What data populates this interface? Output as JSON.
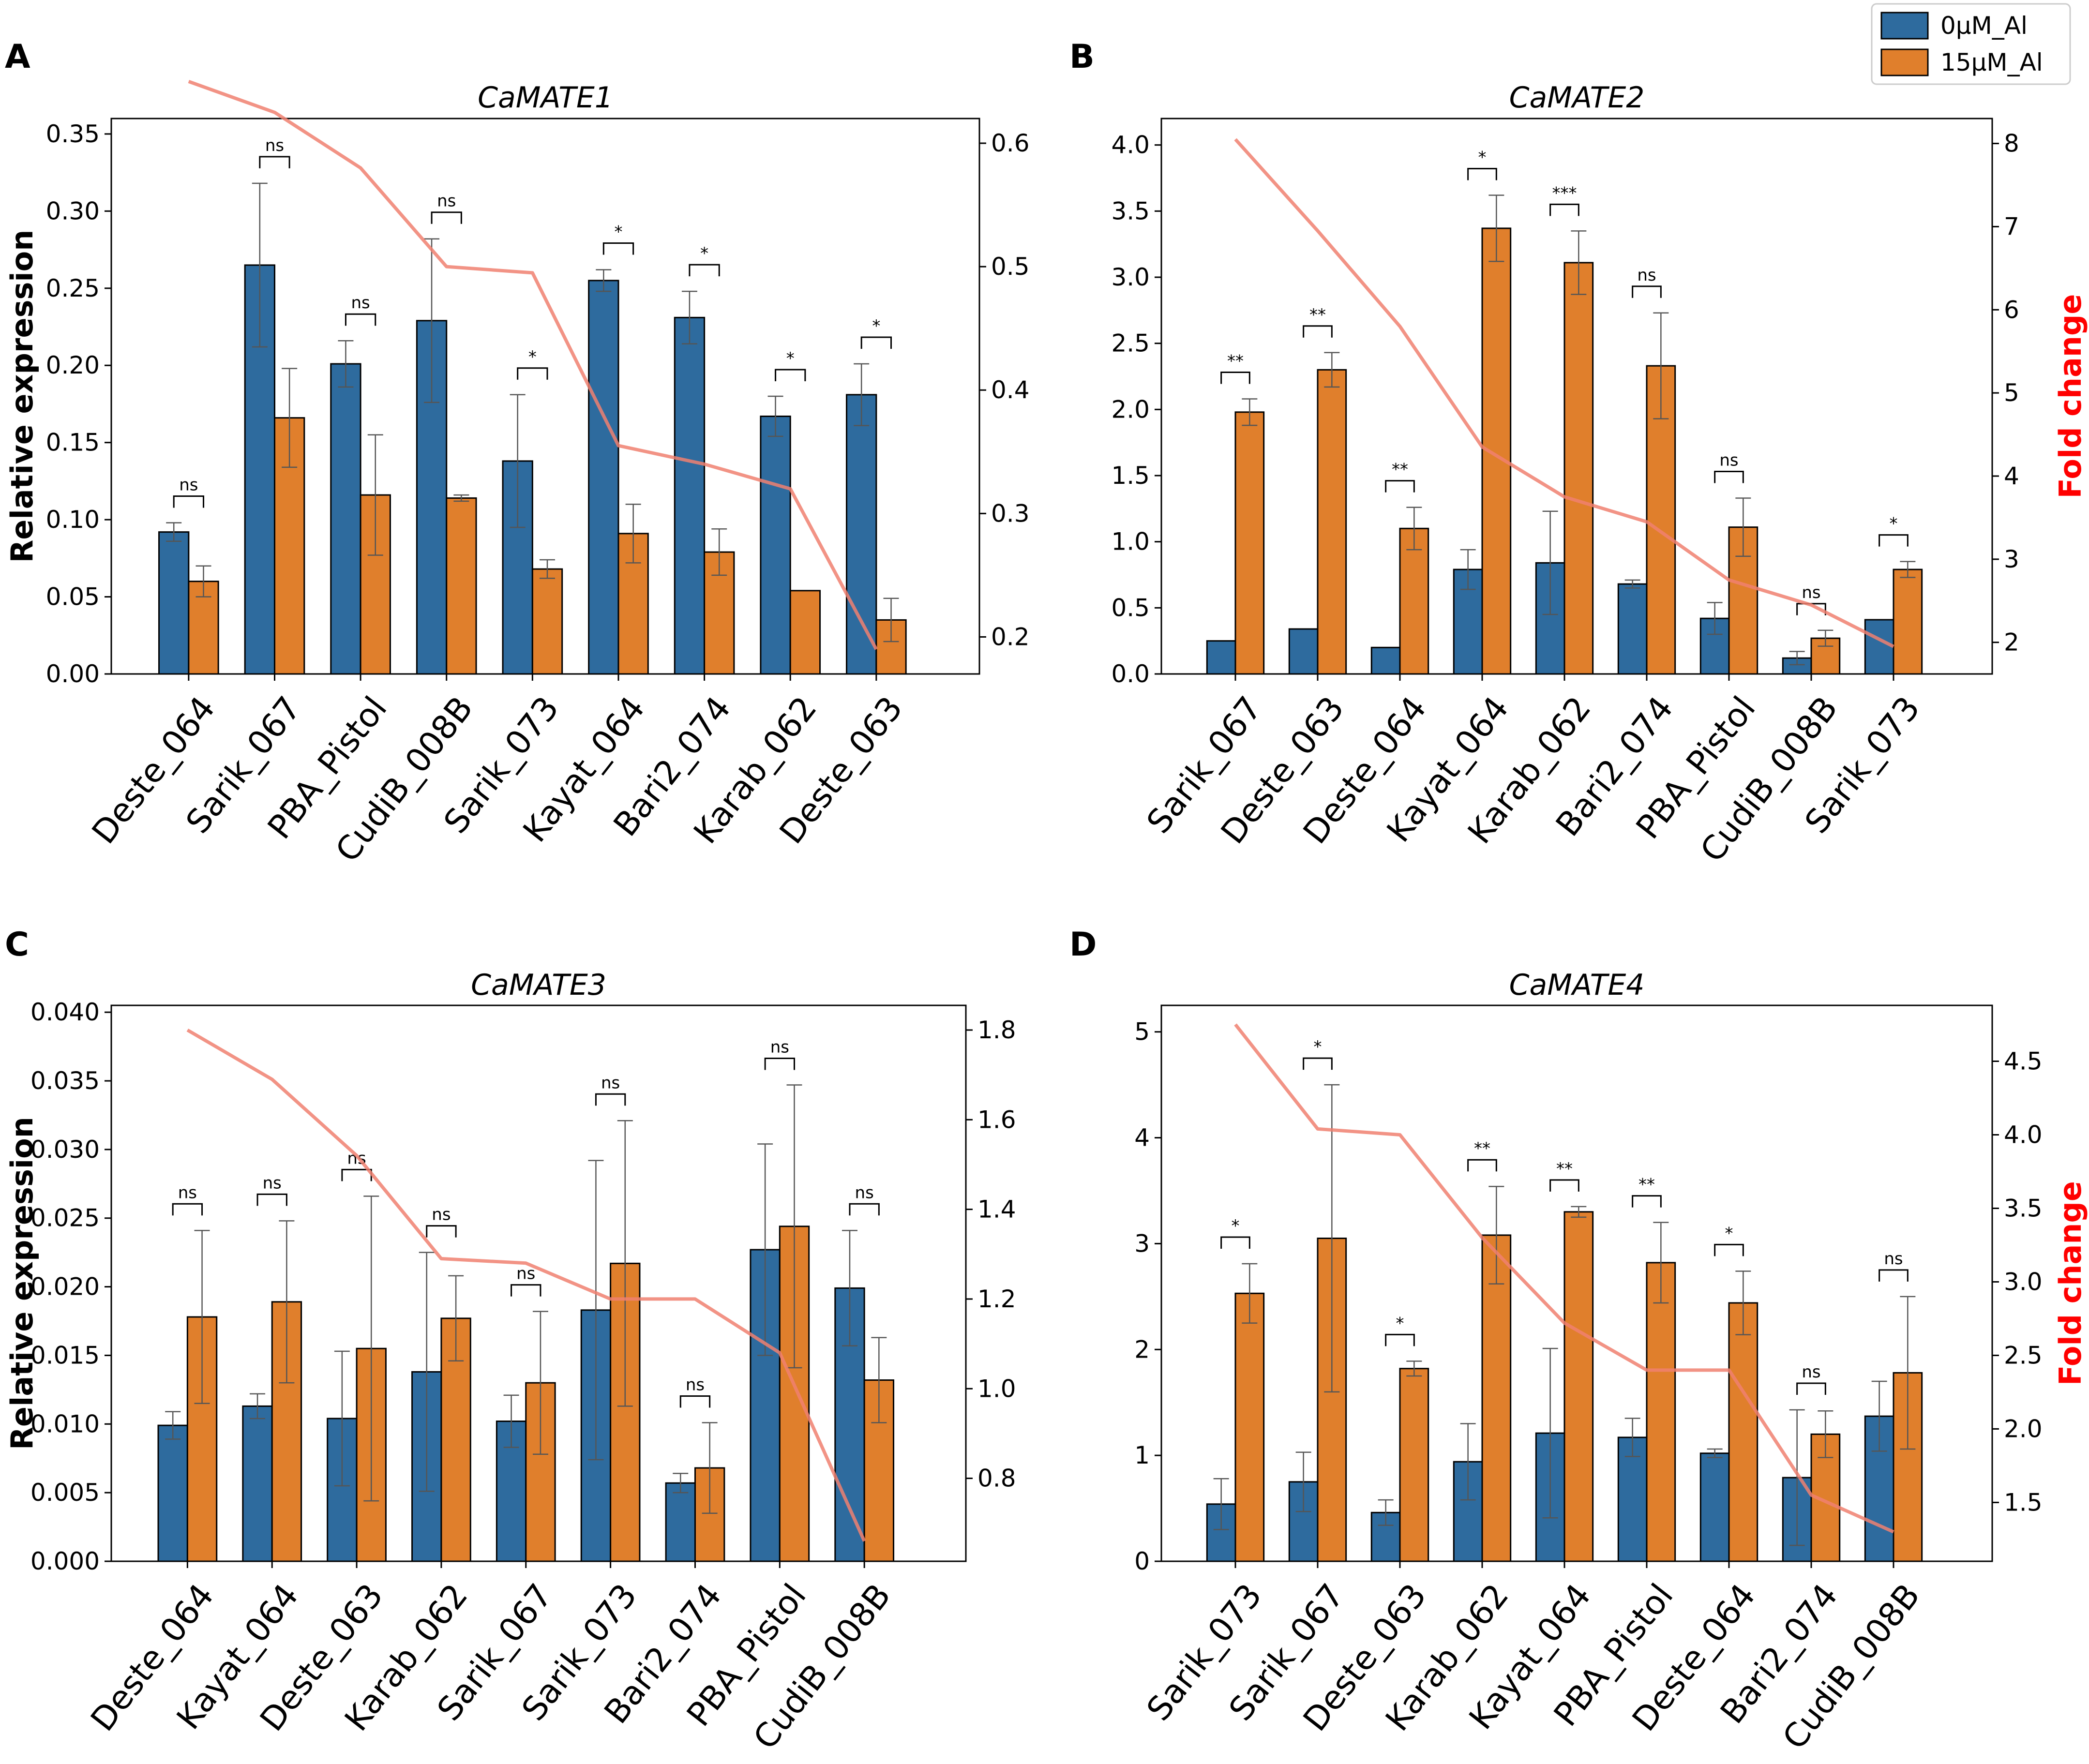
{
  "legend": {
    "entries": [
      {
        "label": "0μM_Al",
        "color": "#2e6b9e"
      },
      {
        "label": "15μM_Al",
        "color": "#e07f2c"
      }
    ],
    "placement": "top-right"
  },
  "colors": {
    "control": "#2e6b9e",
    "treated": "#e07f2c",
    "fold_line": "#f08070",
    "fold_label": "#ff0000"
  },
  "chart_data": [
    {
      "type": "bar",
      "panel_letter": "A",
      "title": "CaMATE1",
      "ylabel": "Relative expression",
      "ylabel_right": "",
      "ylim": [
        0,
        0.36
      ],
      "yticks": [
        0.0,
        0.05,
        0.1,
        0.15,
        0.2,
        0.25,
        0.3,
        0.35
      ],
      "ytick_labels": [
        "0.00",
        "0.05",
        "0.10",
        "0.15",
        "0.20",
        "0.25",
        "0.30",
        "0.35"
      ],
      "y2lim": [
        0.17,
        0.62
      ],
      "y2ticks": [
        0.2,
        0.3,
        0.4,
        0.5,
        0.6
      ],
      "y2tick_labels": [
        "0.2",
        "0.3",
        "0.4",
        "0.5",
        "0.6"
      ],
      "categories": [
        "Deste_064",
        "Sarik_067",
        "PBA_Pistol",
        "CudiB_008B",
        "Sarik_073",
        "Kayat_064",
        "Bari2_074",
        "Karab_062",
        "Deste_063"
      ],
      "series": [
        {
          "name": "0μM_Al",
          "values": [
            0.092,
            0.265,
            0.201,
            0.229,
            0.138,
            0.255,
            0.231,
            0.167,
            0.181
          ],
          "errors": [
            0.006,
            0.053,
            0.015,
            0.053,
            0.043,
            0.007,
            0.017,
            0.013,
            0.02
          ]
        },
        {
          "name": "15μM_Al",
          "values": [
            0.06,
            0.166,
            0.116,
            0.114,
            0.068,
            0.091,
            0.079,
            0.054,
            0.035
          ],
          "errors": [
            0.01,
            0.032,
            0.039,
            0.002,
            0.006,
            0.019,
            0.015,
            0.0,
            0.014
          ]
        }
      ],
      "fold_change": [
        0.65,
        0.625,
        0.58,
        0.5,
        0.495,
        0.355,
        0.34,
        0.32,
        0.19
      ],
      "significance": [
        "ns",
        "ns",
        "ns",
        "ns",
        "*",
        "*",
        "*",
        "*",
        "*"
      ]
    },
    {
      "type": "bar",
      "panel_letter": "B",
      "title": "CaMATE2",
      "ylabel": "",
      "ylabel_right": "Fold change",
      "ylim": [
        0,
        4.2
      ],
      "yticks": [
        0.0,
        0.5,
        1.0,
        1.5,
        2.0,
        2.5,
        3.0,
        3.5,
        4.0
      ],
      "ytick_labels": [
        "0.0",
        "0.5",
        "1.0",
        "1.5",
        "2.0",
        "2.5",
        "3.0",
        "3.5",
        "4.0"
      ],
      "y2lim": [
        1.62,
        8.3
      ],
      "y2ticks": [
        2,
        3,
        4,
        5,
        6,
        7,
        8
      ],
      "y2tick_labels": [
        "2",
        "3",
        "4",
        "5",
        "6",
        "7",
        "8"
      ],
      "categories": [
        "Sarik_067",
        "Deste_063",
        "Deste_064",
        "Kayat_064",
        "Karab_062",
        "Bari2_074",
        "PBA_Pistol",
        "CudiB_008B",
        "Sarik_073"
      ],
      "series": [
        {
          "name": "0μM_Al",
          "values": [
            0.25,
            0.34,
            0.2,
            0.79,
            0.84,
            0.68,
            0.42,
            0.12,
            0.41
          ],
          "errors": [
            0.0,
            0.0,
            0.0,
            0.15,
            0.39,
            0.03,
            0.12,
            0.05,
            0.0
          ]
        },
        {
          "name": "15μM_Al",
          "values": [
            1.98,
            2.3,
            1.1,
            3.37,
            3.11,
            2.33,
            1.11,
            0.27,
            0.79
          ],
          "errors": [
            0.1,
            0.13,
            0.16,
            0.25,
            0.24,
            0.4,
            0.22,
            0.06,
            0.06
          ]
        }
      ],
      "fold_change": [
        8.05,
        6.95,
        5.8,
        4.35,
        3.75,
        3.45,
        2.75,
        2.45,
        1.95
      ],
      "significance": [
        "**",
        "**",
        "**",
        "*",
        "***",
        "ns",
        "ns",
        "ns",
        "*"
      ]
    },
    {
      "type": "bar",
      "panel_letter": "C",
      "title": "CaMATE3",
      "ylabel": "Relative expression",
      "ylabel_right": "",
      "ylim": [
        0,
        0.0405
      ],
      "yticks": [
        0.0,
        0.005,
        0.01,
        0.015,
        0.02,
        0.025,
        0.03,
        0.035,
        0.04
      ],
      "ytick_labels": [
        "0.000",
        "0.005",
        "0.010",
        "0.015",
        "0.020",
        "0.025",
        "0.030",
        "0.035",
        "0.040"
      ],
      "y2lim": [
        0.615,
        1.855
      ],
      "y2ticks": [
        0.8,
        1.0,
        1.2,
        1.4,
        1.6,
        1.8
      ],
      "y2tick_labels": [
        "0.8",
        "1.0",
        "1.2",
        "1.4",
        "1.6",
        "1.8"
      ],
      "categories": [
        "Deste_064",
        "Kayat_064",
        "Deste_063",
        "Karab_062",
        "Sarik_067",
        "Sarik_073",
        "Bari2_074",
        "PBA_Pistol",
        "CudiB_008B"
      ],
      "series": [
        {
          "name": "0μM_Al",
          "values": [
            0.0099,
            0.0113,
            0.0104,
            0.0138,
            0.0102,
            0.0183,
            0.0057,
            0.0227,
            0.0199
          ],
          "errors": [
            0.001,
            0.0009,
            0.0049,
            0.0087,
            0.0019,
            0.0109,
            0.0007,
            0.0077,
            0.0042
          ]
        },
        {
          "name": "15μM_Al",
          "values": [
            0.0178,
            0.0189,
            0.0155,
            0.0177,
            0.013,
            0.0217,
            0.0068,
            0.0244,
            0.0132
          ],
          "errors": [
            0.0063,
            0.0059,
            0.0111,
            0.0031,
            0.0052,
            0.0104,
            0.0033,
            0.0103,
            0.0031
          ]
        }
      ],
      "fold_change": [
        1.8,
        1.69,
        1.52,
        1.29,
        1.28,
        1.2,
        1.2,
        1.08,
        0.66
      ],
      "significance": [
        "ns",
        "ns",
        "ns",
        "ns",
        "ns",
        "ns",
        "ns",
        "ns",
        "ns"
      ]
    },
    {
      "type": "bar",
      "panel_letter": "D",
      "title": "CaMATE4",
      "ylabel": "",
      "ylabel_right": "Fold change",
      "ylim": [
        0,
        5.25
      ],
      "yticks": [
        0,
        1,
        2,
        3,
        4,
        5
      ],
      "ytick_labels": [
        "0",
        "1",
        "2",
        "3",
        "4",
        "5"
      ],
      "y2lim": [
        1.1,
        4.88
      ],
      "y2ticks": [
        1.5,
        2.0,
        2.5,
        3.0,
        3.5,
        4.0,
        4.5
      ],
      "y2tick_labels": [
        "1.5",
        "2.0",
        "2.5",
        "3.0",
        "3.5",
        "4.0",
        "4.5"
      ],
      "categories": [
        "Sarik_073",
        "Sarik_067",
        "Deste_063",
        "Karab_062",
        "Kayat_064",
        "PBA_Pistol",
        "Deste_064",
        "Bari2_074",
        "CudiB_008B"
      ],
      "series": [
        {
          "name": "0μM_Al",
          "values": [
            0.54,
            0.75,
            0.46,
            0.94,
            1.21,
            1.17,
            1.02,
            0.79,
            1.37
          ],
          "errors": [
            0.24,
            0.28,
            0.12,
            0.36,
            0.8,
            0.18,
            0.04,
            0.64,
            0.33
          ]
        },
        {
          "name": "15μM_Al",
          "values": [
            2.53,
            3.05,
            1.82,
            3.08,
            3.3,
            2.82,
            2.44,
            1.2,
            1.78
          ],
          "errors": [
            0.28,
            1.45,
            0.07,
            0.46,
            0.05,
            0.38,
            0.3,
            0.22,
            0.72
          ]
        }
      ],
      "fold_change": [
        4.75,
        4.04,
        4.0,
        3.3,
        2.72,
        2.4,
        2.4,
        1.55,
        1.3
      ],
      "significance": [
        "*",
        "*",
        "*",
        "**",
        "**",
        "**",
        "*",
        "ns",
        "ns"
      ]
    }
  ]
}
